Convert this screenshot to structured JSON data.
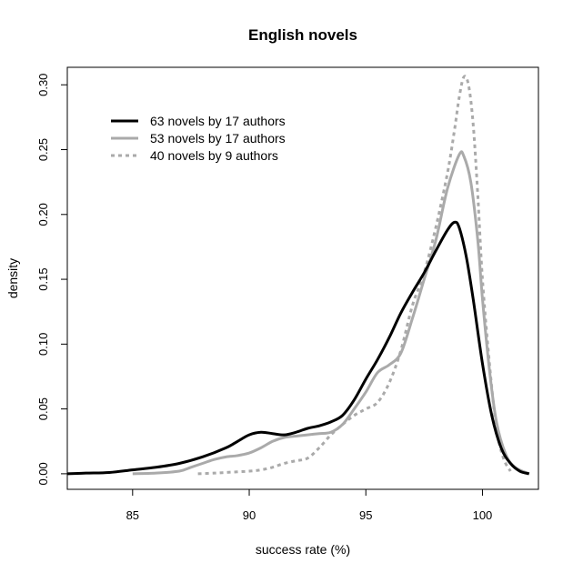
{
  "chart_data": {
    "type": "line",
    "title": "English novels",
    "xlabel": "success rate (%)",
    "ylabel": "density",
    "xlim": [
      82.2,
      102.4
    ],
    "ylim": [
      -0.012,
      0.3135
    ],
    "xticks": [
      85,
      90,
      95,
      100
    ],
    "yticks": [
      0.0,
      0.05,
      0.1,
      0.15,
      0.2,
      0.25,
      0.3
    ],
    "ytick_labels": [
      "0.00",
      "0.05",
      "0.10",
      "0.15",
      "0.20",
      "0.25",
      "0.30"
    ],
    "grid": false,
    "legend_position": "top-left",
    "series": [
      {
        "name": "63 novels by 17 authors",
        "color": "#000000",
        "dash": "solid",
        "x": [
          82.2,
          83.0,
          84.0,
          85.0,
          86.0,
          87.0,
          88.0,
          89.0,
          89.5,
          90.0,
          90.5,
          91.0,
          91.5,
          92.0,
          92.5,
          93.0,
          93.5,
          94.0,
          94.5,
          95.0,
          95.5,
          96.0,
          96.5,
          97.0,
          97.5,
          98.0,
          98.5,
          98.8,
          99.0,
          99.3,
          99.6,
          100.0,
          100.4,
          100.8,
          101.2,
          101.6,
          102.0
        ],
        "y": [
          0.0,
          0.0005,
          0.001,
          0.003,
          0.005,
          0.008,
          0.013,
          0.02,
          0.025,
          0.03,
          0.032,
          0.031,
          0.03,
          0.032,
          0.035,
          0.037,
          0.04,
          0.045,
          0.057,
          0.073,
          0.088,
          0.105,
          0.124,
          0.14,
          0.155,
          0.172,
          0.188,
          0.194,
          0.19,
          0.168,
          0.135,
          0.085,
          0.045,
          0.02,
          0.008,
          0.002,
          0.0
        ]
      },
      {
        "name": "53 novels by 17 authors",
        "color": "#aaaaaa",
        "dash": "solid",
        "x": [
          85.0,
          86.0,
          87.0,
          87.5,
          88.0,
          88.5,
          89.0,
          89.5,
          90.0,
          90.5,
          91.0,
          91.5,
          92.0,
          92.5,
          93.0,
          93.5,
          94.0,
          94.5,
          95.0,
          95.5,
          96.0,
          96.5,
          97.0,
          97.5,
          98.0,
          98.5,
          99.0,
          99.2,
          99.5,
          99.8,
          100.0,
          100.3,
          100.6,
          101.0,
          101.4,
          102.0
        ],
        "y": [
          0.0,
          0.0005,
          0.002,
          0.005,
          0.008,
          0.011,
          0.013,
          0.014,
          0.016,
          0.02,
          0.025,
          0.028,
          0.029,
          0.03,
          0.031,
          0.032,
          0.038,
          0.05,
          0.063,
          0.078,
          0.084,
          0.093,
          0.12,
          0.15,
          0.18,
          0.22,
          0.246,
          0.245,
          0.225,
          0.18,
          0.135,
          0.08,
          0.04,
          0.015,
          0.005,
          0.0
        ]
      },
      {
        "name": "40 novels by 9 authors",
        "color": "#aaaaaa",
        "dash": "dashed",
        "x": [
          87.8,
          88.5,
          89.0,
          89.5,
          90.0,
          90.5,
          91.0,
          91.5,
          92.0,
          92.5,
          93.0,
          93.5,
          94.0,
          94.5,
          95.0,
          95.5,
          96.0,
          96.5,
          97.0,
          97.5,
          98.0,
          98.5,
          98.8,
          99.0,
          99.2,
          99.4,
          99.6,
          99.8,
          100.0,
          100.3,
          100.6,
          100.9,
          101.2
        ],
        "y": [
          0.0,
          0.0005,
          0.001,
          0.0015,
          0.002,
          0.003,
          0.005,
          0.008,
          0.01,
          0.012,
          0.02,
          0.03,
          0.038,
          0.045,
          0.05,
          0.055,
          0.07,
          0.095,
          0.13,
          0.155,
          0.19,
          0.232,
          0.265,
          0.29,
          0.306,
          0.3,
          0.27,
          0.215,
          0.15,
          0.085,
          0.035,
          0.012,
          0.002
        ]
      }
    ]
  }
}
